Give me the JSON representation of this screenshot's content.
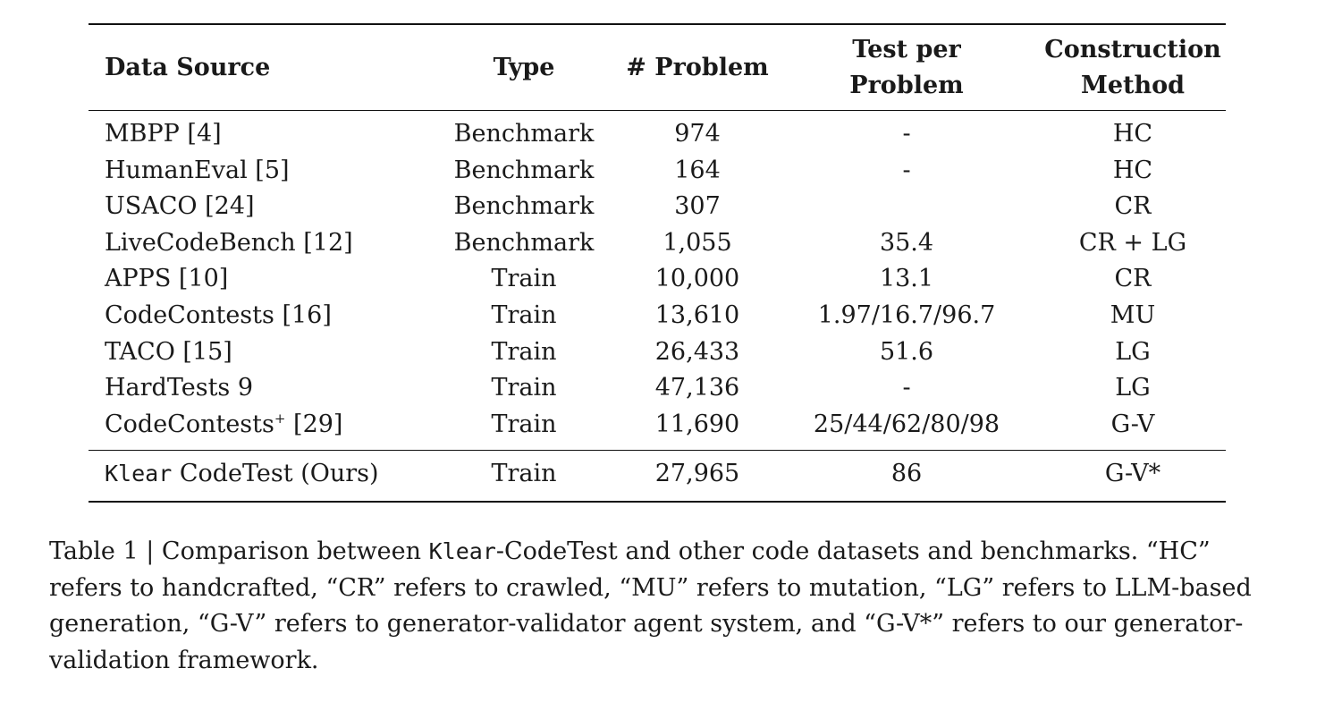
{
  "table": {
    "headers": {
      "source": "Data Source",
      "type": "Type",
      "problem": "# Problem",
      "test_line1": "Test per",
      "test_line2": "Problem",
      "method_line1": "Construction",
      "method_line2": "Method"
    },
    "rows": [
      {
        "source": "MBPP [4]",
        "type": "Benchmark",
        "problem": "974",
        "test": "-",
        "method": "HC"
      },
      {
        "source": "HumanEval [5]",
        "type": "Benchmark",
        "problem": "164",
        "test": "-",
        "method": "HC"
      },
      {
        "source": "USACO [24]",
        "type": "Benchmark",
        "problem": "307",
        "test": "",
        "method": "CR"
      },
      {
        "source": "LiveCodeBench [12]",
        "type": "Benchmark",
        "problem": "1,055",
        "test": "35.4",
        "method": "CR + LG"
      },
      {
        "source": "APPS [10]",
        "type": "Train",
        "problem": "10,000",
        "test": "13.1",
        "method": "CR"
      },
      {
        "source": "CodeContests [16]",
        "type": "Train",
        "problem": "13,610",
        "test": "1.97/16.7/96.7",
        "method": "MU"
      },
      {
        "source": "TACO [15]",
        "type": "Train",
        "problem": "26,433",
        "test": "51.6",
        "method": "LG"
      },
      {
        "source": "HardTests 9",
        "type": "Train",
        "problem": "47,136",
        "test": "-",
        "method": "LG"
      },
      {
        "source": "CodeContests",
        "source_sup": "+",
        "source_ref": " [29]",
        "type": "Train",
        "problem": "11,690",
        "test": "25/44/62/80/98",
        "method": "G-V"
      }
    ],
    "ours": {
      "source_mono": "Klear",
      "source_rest": " CodeTest (Ours)",
      "type": "Train",
      "problem": "27,965",
      "test": "86",
      "method": "G-V*"
    }
  },
  "caption": {
    "prefix": "Table 1 | Comparison between ",
    "mono": "Klear",
    "rest": "-CodeTest and other code datasets and benchmarks. “HC” refers to handcrafted, “CR” refers to crawled, “MU” refers to mutation, “LG” refers to LLM-based generation, “G-V” refers to generator-validator agent system, and “G-V*” refers to our generator-validation framework."
  }
}
